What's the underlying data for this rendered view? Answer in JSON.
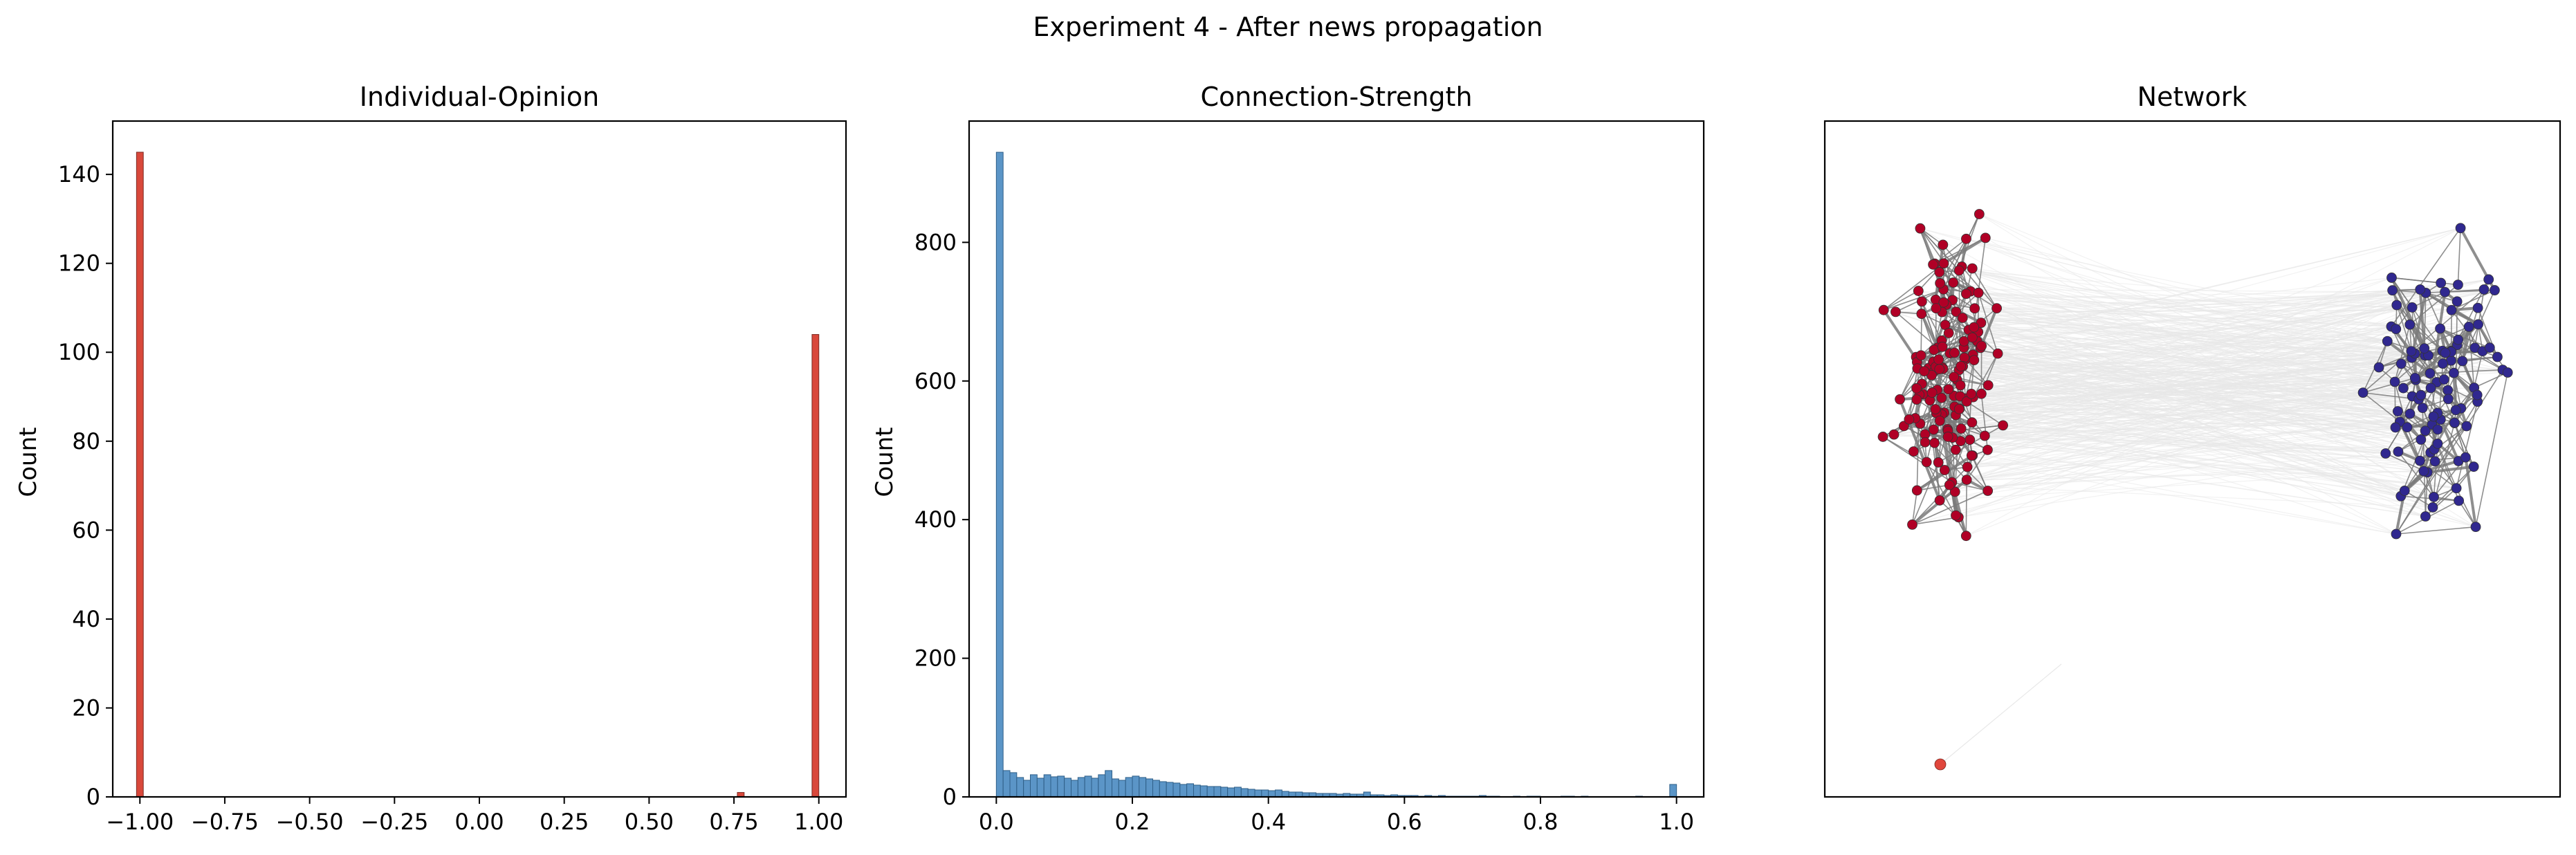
{
  "figure": {
    "title": "Experiment 4 - After news propagation"
  },
  "colors": {
    "opinion_bar": "#d9483b",
    "strength_bar": "#5b95c7",
    "strength_edge": "#2f5f88",
    "node_red": "#b00026",
    "node_blue": "#30288f",
    "edge_strong": "#7a7a7a",
    "edge_weak": "#e8e8e8",
    "outlier_node": "#e0463c"
  },
  "chart_data": [
    {
      "type": "bar",
      "title": "Individual-Opinion",
      "xlabel": "",
      "ylabel": "Count",
      "xlim": [
        -1.08,
        1.08
      ],
      "ylim": [
        0,
        152
      ],
      "xticks": [
        -1.0,
        -0.75,
        -0.5,
        -0.25,
        0.0,
        0.25,
        0.5,
        0.75,
        1.0
      ],
      "xtick_labels": [
        "−1.00",
        "−0.75",
        "−0.50",
        "−0.25",
        "0.00",
        "0.25",
        "0.50",
        "0.75",
        "1.00"
      ],
      "yticks": [
        0,
        20,
        40,
        60,
        80,
        100,
        120,
        140
      ],
      "ytick_labels": [
        "0",
        "20",
        "40",
        "60",
        "80",
        "100",
        "120",
        "140"
      ],
      "bin_width": 0.02,
      "bins": [
        {
          "x": -1.0,
          "count": 145
        },
        {
          "x": 0.77,
          "count": 1
        },
        {
          "x": 0.99,
          "count": 104
        }
      ]
    },
    {
      "type": "bar",
      "title": "Connection-Strength",
      "xlabel": "",
      "ylabel": "Count",
      "xlim": [
        -0.04,
        1.04
      ],
      "ylim": [
        0,
        975
      ],
      "xticks": [
        0.0,
        0.2,
        0.4,
        0.6,
        0.8,
        1.0
      ],
      "xtick_labels": [
        "0.0",
        "0.2",
        "0.4",
        "0.6",
        "0.8",
        "1.0"
      ],
      "yticks": [
        0,
        200,
        400,
        600,
        800
      ],
      "ytick_labels": [
        "0",
        "200",
        "400",
        "600",
        "800"
      ],
      "bin_start": 0.0,
      "bin_width": 0.01,
      "values": [
        930,
        38,
        35,
        28,
        24,
        32,
        27,
        32,
        29,
        30,
        27,
        24,
        28,
        30,
        27,
        32,
        38,
        26,
        24,
        28,
        30,
        28,
        26,
        24,
        22,
        21,
        20,
        18,
        19,
        17,
        16,
        15,
        15,
        14,
        13,
        14,
        12,
        11,
        10,
        10,
        9,
        10,
        8,
        7,
        7,
        6,
        6,
        5,
        5,
        5,
        4,
        5,
        4,
        4,
        7,
        3,
        3,
        2,
        3,
        2,
        2,
        2,
        1,
        2,
        1,
        2,
        1,
        1,
        1,
        1,
        1,
        2,
        1,
        1,
        0,
        0,
        1,
        0,
        1,
        1,
        0,
        0,
        0,
        1,
        1,
        0,
        1,
        0,
        0,
        0,
        0,
        0,
        0,
        0,
        1,
        0,
        0,
        0,
        0,
        18
      ]
    },
    {
      "type": "network",
      "title": "Network",
      "clusters": [
        {
          "name": "red",
          "color": "#b00026",
          "count": 145
        },
        {
          "name": "blue",
          "color": "#30288f",
          "count": 104
        }
      ],
      "outlier_count": 1
    }
  ]
}
